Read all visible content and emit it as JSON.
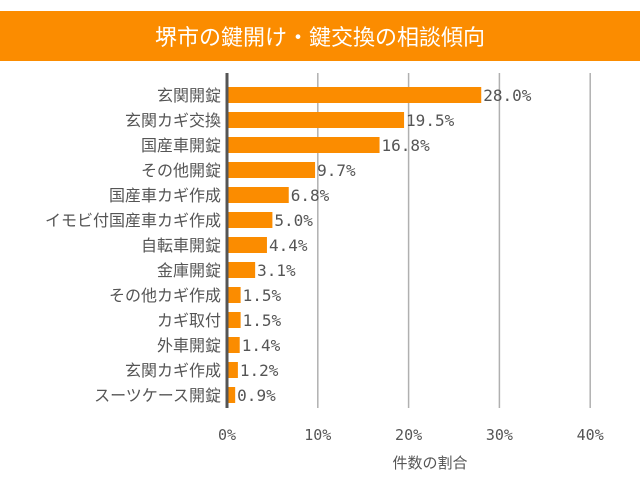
{
  "colors": {
    "bar": "#fb8c00",
    "title_bg": "#fb8c00",
    "grid": "#b0b0b0",
    "axis": "#555555",
    "text": "#555555"
  },
  "chart_data": {
    "type": "bar",
    "orientation": "horizontal",
    "title": "堺市の鍵開け・鍵交換の相談傾向",
    "xlabel": "件数の割合",
    "ylabel": "",
    "categories": [
      "玄関開錠",
      "玄関カギ交換",
      "国産車開錠",
      "その他開錠",
      "国産車カギ作成",
      "イモビ付国産車カギ作成",
      "自転車開錠",
      "金庫開錠",
      "その他カギ作成",
      "カギ取付",
      "外車開錠",
      "玄関カギ作成",
      "スーツケース開錠"
    ],
    "values": [
      28.0,
      19.5,
      16.8,
      9.7,
      6.8,
      5.0,
      4.4,
      3.1,
      1.5,
      1.5,
      1.4,
      1.2,
      0.9
    ],
    "data_labels": [
      "28.0%",
      "19.5%",
      "16.8%",
      "9.7%",
      "6.8%",
      "5.0%",
      "4.4%",
      "3.1%",
      "1.5%",
      "1.5%",
      "1.4%",
      "1.2%",
      "0.9%"
    ],
    "xlim": [
      0,
      40
    ],
    "xticks": [
      0,
      10,
      20,
      30,
      40
    ],
    "xtick_labels": [
      "0%",
      "10%",
      "20%",
      "30%",
      "40%"
    ],
    "grid": true
  }
}
